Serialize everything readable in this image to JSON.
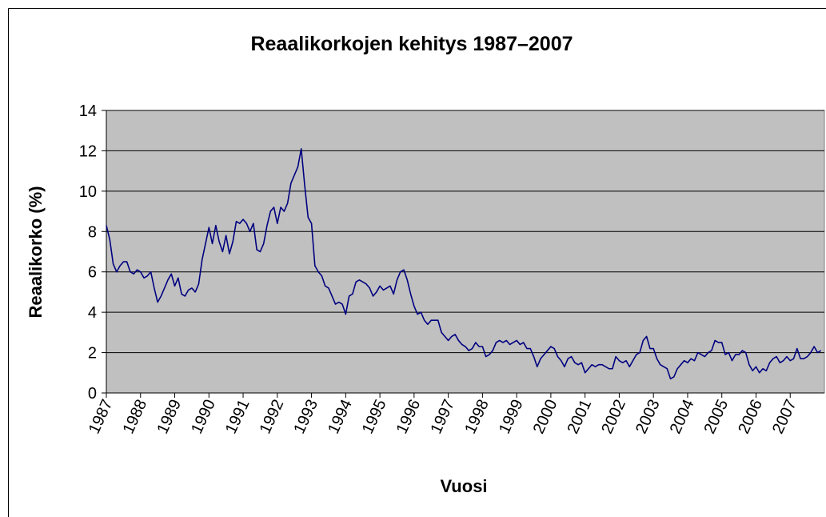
{
  "chart_data": {
    "type": "line",
    "title": "Reaalikorkojen kehitys 1987–2007",
    "xlabel": "Vuosi",
    "ylabel": "Reaalikorko (%)",
    "x": [
      1987,
      1987.1,
      1987.2,
      1987.3,
      1987.4,
      1987.5,
      1987.6,
      1987.7,
      1987.8,
      1987.9,
      1988,
      1988.1,
      1988.2,
      1988.3,
      1988.4,
      1988.5,
      1988.6,
      1988.7,
      1988.8,
      1988.9,
      1989,
      1989.1,
      1989.2,
      1989.3,
      1989.4,
      1989.5,
      1989.6,
      1989.7,
      1989.8,
      1989.9,
      1990,
      1990.1,
      1990.2,
      1990.3,
      1990.4,
      1990.5,
      1990.6,
      1990.7,
      1990.8,
      1990.9,
      1991,
      1991.1,
      1991.2,
      1991.3,
      1991.4,
      1991.5,
      1991.6,
      1991.7,
      1991.8,
      1991.9,
      1992,
      1992.1,
      1992.2,
      1992.3,
      1992.4,
      1992.5,
      1992.6,
      1992.7,
      1992.8,
      1992.9,
      1993,
      1993.1,
      1993.2,
      1993.3,
      1993.4,
      1993.5,
      1993.6,
      1993.7,
      1993.8,
      1993.9,
      1994,
      1994.1,
      1994.2,
      1994.3,
      1994.4,
      1994.5,
      1994.6,
      1994.7,
      1994.8,
      1994.9,
      1995,
      1995.1,
      1995.2,
      1995.3,
      1995.4,
      1995.5,
      1995.6,
      1995.7,
      1995.8,
      1995.9,
      1996,
      1996.1,
      1996.2,
      1996.3,
      1996.4,
      1996.5,
      1996.6,
      1996.7,
      1996.8,
      1996.9,
      1997,
      1997.1,
      1997.2,
      1997.3,
      1997.4,
      1997.5,
      1997.6,
      1997.7,
      1997.8,
      1997.9,
      1998,
      1998.1,
      1998.2,
      1998.3,
      1998.4,
      1998.5,
      1998.6,
      1998.7,
      1998.8,
      1998.9,
      1999,
      1999.1,
      1999.2,
      1999.3,
      1999.4,
      1999.5,
      1999.6,
      1999.7,
      1999.8,
      1999.9,
      2000,
      2000.1,
      2000.2,
      2000.3,
      2000.4,
      2000.5,
      2000.6,
      2000.7,
      2000.8,
      2000.9,
      2001,
      2001.1,
      2001.2,
      2001.3,
      2001.4,
      2001.5,
      2001.6,
      2001.7,
      2001.8,
      2001.9,
      2002,
      2002.1,
      2002.2,
      2002.3,
      2002.4,
      2002.5,
      2002.6,
      2002.7,
      2002.8,
      2002.9,
      2003,
      2003.1,
      2003.2,
      2003.3,
      2003.4,
      2003.5,
      2003.6,
      2003.7,
      2003.8,
      2003.9,
      2004,
      2004.1,
      2004.2,
      2004.3,
      2004.4,
      2004.5,
      2004.6,
      2004.7,
      2004.8,
      2004.9,
      2005,
      2005.1,
      2005.2,
      2005.3,
      2005.4,
      2005.5,
      2005.6,
      2005.7,
      2005.8,
      2005.9,
      2006,
      2006.1,
      2006.2,
      2006.3,
      2006.4,
      2006.5,
      2006.6,
      2006.7,
      2006.8,
      2006.9,
      2007,
      2007.1,
      2007.2,
      2007.3,
      2007.4,
      2007.5,
      2007.6,
      2007.7,
      2007.8,
      2007.9
    ],
    "values": [
      8.3,
      7.6,
      6.4,
      6.0,
      6.3,
      6.5,
      6.5,
      6.0,
      5.9,
      6.1,
      6.0,
      5.7,
      5.8,
      6.0,
      5.2,
      4.5,
      4.8,
      5.2,
      5.6,
      5.9,
      5.3,
      5.7,
      4.9,
      4.8,
      5.1,
      5.2,
      5.0,
      5.4,
      6.6,
      7.4,
      8.2,
      7.4,
      8.3,
      7.5,
      7.0,
      7.8,
      6.9,
      7.5,
      8.5,
      8.4,
      8.6,
      8.4,
      8.0,
      8.4,
      7.1,
      7.0,
      7.4,
      8.3,
      9.0,
      9.2,
      8.4,
      9.2,
      9.0,
      9.4,
      10.4,
      10.8,
      11.2,
      12.1,
      10.3,
      8.7,
      8.4,
      6.3,
      6.0,
      5.8,
      5.3,
      5.2,
      4.8,
      4.4,
      4.5,
      4.4,
      3.9,
      4.8,
      4.9,
      5.5,
      5.6,
      5.5,
      5.4,
      5.2,
      4.8,
      5.0,
      5.3,
      5.1,
      5.2,
      5.3,
      4.9,
      5.6,
      6.0,
      6.1,
      5.6,
      4.9,
      4.3,
      3.9,
      4.0,
      3.6,
      3.4,
      3.6,
      3.6,
      3.6,
      3.0,
      2.8,
      2.6,
      2.8,
      2.9,
      2.6,
      2.4,
      2.3,
      2.1,
      2.2,
      2.5,
      2.3,
      2.3,
      1.8,
      1.9,
      2.1,
      2.5,
      2.6,
      2.5,
      2.6,
      2.4,
      2.5,
      2.6,
      2.4,
      2.5,
      2.2,
      2.2,
      1.8,
      1.3,
      1.7,
      1.9,
      2.1,
      2.3,
      2.2,
      1.8,
      1.6,
      1.3,
      1.7,
      1.8,
      1.5,
      1.4,
      1.5,
      1.0,
      1.2,
      1.4,
      1.3,
      1.4,
      1.4,
      1.3,
      1.2,
      1.2,
      1.8,
      1.6,
      1.5,
      1.6,
      1.3,
      1.6,
      1.9,
      2.0,
      2.6,
      2.8,
      2.2,
      2.2,
      1.7,
      1.4,
      1.3,
      1.2,
      0.7,
      0.8,
      1.2,
      1.4,
      1.6,
      1.5,
      1.7,
      1.6,
      2.0,
      1.9,
      1.8,
      2.0,
      2.1,
      2.6,
      2.5,
      2.5,
      1.9,
      2.0,
      1.6,
      1.9,
      1.9,
      2.1,
      2.0,
      1.4,
      1.1,
      1.3,
      1.0,
      1.2,
      1.1,
      1.5,
      1.7,
      1.8,
      1.5,
      1.6,
      1.8,
      1.6,
      1.7,
      2.2,
      1.7,
      1.7,
      1.8,
      2.0,
      2.3,
      2.0,
      2.1
    ],
    "color": "#000080",
    "xlim": [
      1987,
      2008
    ],
    "xticks": [
      1987,
      1988,
      1989,
      1990,
      1991,
      1992,
      1993,
      1994,
      1995,
      1996,
      1997,
      1998,
      1999,
      2000,
      2001,
      2002,
      2003,
      2004,
      2005,
      2006,
      2007
    ],
    "ylim": [
      0,
      14
    ],
    "yticks": [
      0,
      2,
      4,
      6,
      8,
      10,
      12,
      14
    ],
    "grid": true
  }
}
